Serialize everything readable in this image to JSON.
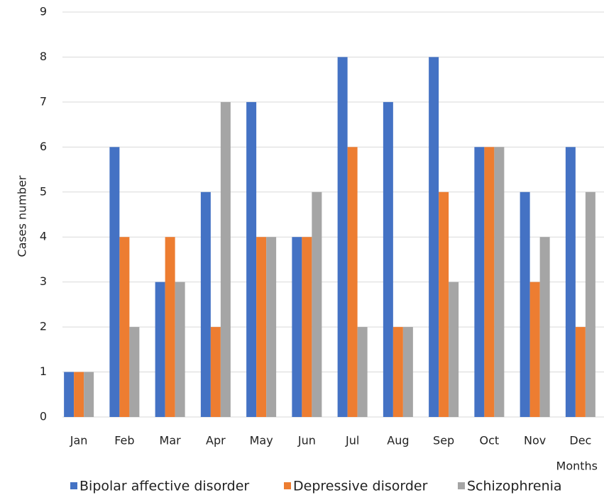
{
  "chart_data": {
    "type": "bar",
    "categories": [
      "Jan",
      "Feb",
      "Mar",
      "Apr",
      "May",
      "Jun",
      "Jul",
      "Aug",
      "Sep",
      "Oct",
      "Nov",
      "Dec"
    ],
    "series": [
      {
        "name": "Bipolar affective disorder",
        "color": "#4472c4",
        "values": [
          1,
          6,
          3,
          5,
          7,
          4,
          8,
          7,
          8,
          6,
          5,
          6
        ]
      },
      {
        "name": "Depressive disorder",
        "color": "#ed7d31",
        "values": [
          1,
          4,
          4,
          2,
          4,
          4,
          6,
          2,
          5,
          6,
          3,
          2
        ]
      },
      {
        "name": "Schizophrenia",
        "color": "#a5a5a5",
        "values": [
          1,
          2,
          3,
          7,
          4,
          5,
          2,
          2,
          3,
          6,
          4,
          5
        ]
      }
    ],
    "y_label": "Cases number",
    "x_label": "Months",
    "ylim": [
      0,
      9
    ],
    "yticks": [
      0,
      1,
      2,
      3,
      4,
      5,
      6,
      7,
      8,
      9
    ],
    "grid": true,
    "legend": "bottom"
  }
}
